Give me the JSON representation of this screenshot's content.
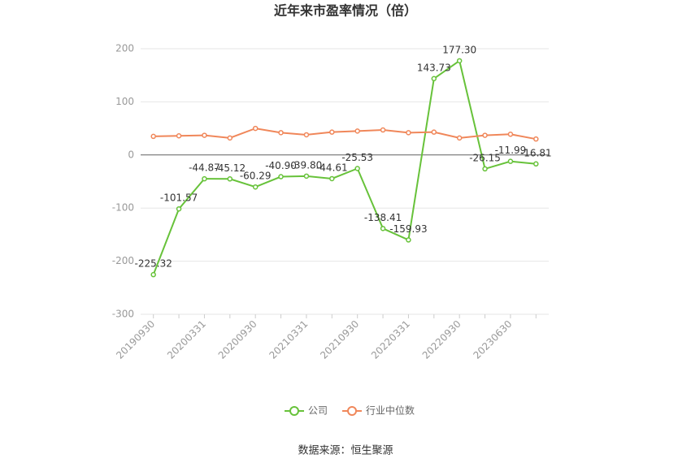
{
  "chart_data": {
    "type": "line",
    "title": "近年来市盈率情况（倍）",
    "categories": [
      "20190930",
      null,
      "20200331",
      null,
      "20200930",
      null,
      "20210331",
      null,
      "20210930",
      null,
      "20220331",
      null,
      "20220930",
      null,
      "20230630",
      null
    ],
    "series": [
      {
        "name": "公司",
        "color": "#67c23a",
        "values": [
          -225.32,
          -101.57,
          -44.87,
          -45.12,
          -60.29,
          -40.9,
          -39.8,
          -44.61,
          -25.53,
          -138.41,
          -159.93,
          143.73,
          177.3,
          -26.15,
          -11.99,
          -16.81
        ],
        "value_labels": [
          "-225.32",
          "-101.57",
          "-44.87",
          "-45.12",
          "-60.29",
          "-40.90",
          "-39.80",
          "-44.61",
          "-25.53",
          "-138.41",
          "-159.93",
          "143.73",
          "177.30",
          "-26.15",
          "-11.99",
          "-16.81"
        ]
      },
      {
        "name": "行业中位数",
        "color": "#f0875a",
        "values": [
          35,
          36,
          37,
          32,
          50,
          42,
          38,
          43,
          45,
          47,
          42,
          43,
          32,
          37,
          39,
          30
        ]
      }
    ],
    "ylim": [
      -300,
      200
    ],
    "yticks": [
      -300,
      -200,
      -100,
      0,
      100,
      200
    ],
    "grid": true,
    "legend": "bottom",
    "source": "数据来源：恒生聚源"
  }
}
